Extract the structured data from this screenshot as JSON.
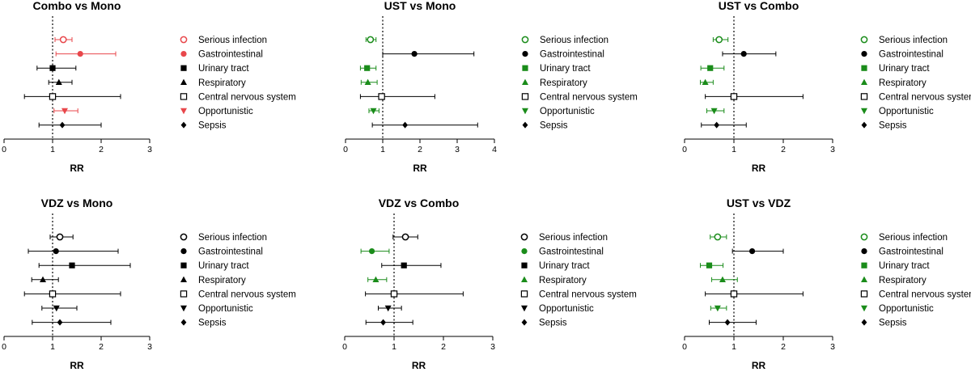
{
  "colors": {
    "highlight": "#e8474b",
    "green": "#1a8c1a",
    "black": "#000000"
  },
  "outcomes": [
    {
      "label": "Serious infection",
      "marker": "circle-open"
    },
    {
      "label": "Gastrointestinal",
      "marker": "circle-filled"
    },
    {
      "label": "Urinary tract",
      "marker": "square-filled"
    },
    {
      "label": "Respiratory",
      "marker": "triangle-up"
    },
    {
      "label": "Central nervous system",
      "marker": "square-open"
    },
    {
      "label": "Opportunistic",
      "marker": "triangle-down"
    },
    {
      "label": "Sepsis",
      "marker": "diamond"
    }
  ],
  "chart_data": [
    {
      "type": "forest",
      "title": "Combo vs Mono",
      "xlabel": "RR",
      "xlim": [
        0,
        3
      ],
      "ticks": [
        0,
        1,
        2,
        3
      ],
      "reference_line": 1,
      "accent": "highlight",
      "points": [
        {
          "outcome": "Serious infection",
          "rr": 1.22,
          "lo": 1.05,
          "hi": 1.4,
          "colored": true
        },
        {
          "outcome": "Gastrointestinal",
          "rr": 1.57,
          "lo": 1.07,
          "hi": 2.3,
          "colored": true
        },
        {
          "outcome": "Urinary tract",
          "rr": 1.0,
          "lo": 0.68,
          "hi": 1.48,
          "colored": false
        },
        {
          "outcome": "Respiratory",
          "rr": 1.13,
          "lo": 0.92,
          "hi": 1.4,
          "colored": false
        },
        {
          "outcome": "Central nervous system",
          "rr": 1.0,
          "lo": 0.42,
          "hi": 2.4,
          "colored": false
        },
        {
          "outcome": "Opportunistic",
          "rr": 1.25,
          "lo": 1.03,
          "hi": 1.52,
          "colored": true
        },
        {
          "outcome": "Sepsis",
          "rr": 1.2,
          "lo": 0.72,
          "hi": 2.0,
          "colored": false
        }
      ]
    },
    {
      "type": "forest",
      "title": "UST vs Mono",
      "xlabel": "RR",
      "xlim": [
        0,
        4
      ],
      "ticks": [
        0,
        1,
        2,
        3,
        4
      ],
      "reference_line": 1,
      "accent": "green",
      "points": [
        {
          "outcome": "Serious infection",
          "rr": 0.67,
          "lo": 0.55,
          "hi": 0.82,
          "colored": true
        },
        {
          "outcome": "Gastrointestinal",
          "rr": 1.85,
          "lo": 1.0,
          "hi": 3.45,
          "colored": false
        },
        {
          "outcome": "Urinary tract",
          "rr": 0.58,
          "lo": 0.4,
          "hi": 0.82,
          "colored": true
        },
        {
          "outcome": "Respiratory",
          "rr": 0.6,
          "lo": 0.42,
          "hi": 0.85,
          "colored": true
        },
        {
          "outcome": "Central nervous system",
          "rr": 0.97,
          "lo": 0.4,
          "hi": 2.4,
          "colored": false
        },
        {
          "outcome": "Opportunistic",
          "rr": 0.75,
          "lo": 0.63,
          "hi": 0.9,
          "colored": true
        },
        {
          "outcome": "Sepsis",
          "rr": 1.6,
          "lo": 0.72,
          "hi": 3.55,
          "colored": false
        }
      ]
    },
    {
      "type": "forest",
      "title": "UST vs Combo",
      "xlabel": "RR",
      "xlim": [
        0,
        3
      ],
      "ticks": [
        0,
        1,
        2,
        3
      ],
      "reference_line": 1,
      "accent": "green",
      "points": [
        {
          "outcome": "Serious infection",
          "rr": 0.7,
          "lo": 0.58,
          "hi": 0.88,
          "colored": true
        },
        {
          "outcome": "Gastrointestinal",
          "rr": 1.2,
          "lo": 0.77,
          "hi": 1.85,
          "colored": false
        },
        {
          "outcome": "Urinary tract",
          "rr": 0.52,
          "lo": 0.33,
          "hi": 0.8,
          "colored": true
        },
        {
          "outcome": "Respiratory",
          "rr": 0.42,
          "lo": 0.32,
          "hi": 0.58,
          "colored": true
        },
        {
          "outcome": "Central nervous system",
          "rr": 1.0,
          "lo": 0.42,
          "hi": 2.4,
          "colored": false
        },
        {
          "outcome": "Opportunistic",
          "rr": 0.6,
          "lo": 0.45,
          "hi": 0.8,
          "colored": true
        },
        {
          "outcome": "Sepsis",
          "rr": 0.65,
          "lo": 0.34,
          "hi": 1.25,
          "colored": false
        }
      ]
    },
    {
      "type": "forest",
      "title": "VDZ vs Mono",
      "xlabel": "RR",
      "xlim": [
        0,
        3
      ],
      "ticks": [
        0,
        1,
        2,
        3
      ],
      "reference_line": 1,
      "accent": "black",
      "points": [
        {
          "outcome": "Serious infection",
          "rr": 1.15,
          "lo": 0.95,
          "hi": 1.42,
          "colored": false
        },
        {
          "outcome": "Gastrointestinal",
          "rr": 1.07,
          "lo": 0.5,
          "hi": 2.35,
          "colored": false
        },
        {
          "outcome": "Urinary tract",
          "rr": 1.4,
          "lo": 0.72,
          "hi": 2.6,
          "colored": false
        },
        {
          "outcome": "Respiratory",
          "rr": 0.8,
          "lo": 0.57,
          "hi": 1.12,
          "colored": false
        },
        {
          "outcome": "Central nervous system",
          "rr": 1.0,
          "lo": 0.42,
          "hi": 2.4,
          "colored": false
        },
        {
          "outcome": "Opportunistic",
          "rr": 1.08,
          "lo": 0.78,
          "hi": 1.5,
          "colored": false
        },
        {
          "outcome": "Sepsis",
          "rr": 1.15,
          "lo": 0.58,
          "hi": 2.2,
          "colored": false
        }
      ]
    },
    {
      "type": "forest",
      "title": "VDZ vs Combo",
      "xlabel": "RR",
      "xlim": [
        0,
        3
      ],
      "ticks": [
        0,
        1,
        2,
        3
      ],
      "reference_line": 1,
      "accent": "green",
      "points": [
        {
          "outcome": "Serious infection",
          "rr": 1.23,
          "lo": 0.98,
          "hi": 1.48,
          "colored": false
        },
        {
          "outcome": "Gastrointestinal",
          "rr": 0.55,
          "lo": 0.33,
          "hi": 0.9,
          "colored": true
        },
        {
          "outcome": "Urinary tract",
          "rr": 1.2,
          "lo": 0.75,
          "hi": 1.95,
          "colored": false
        },
        {
          "outcome": "Respiratory",
          "rr": 0.63,
          "lo": 0.47,
          "hi": 0.85,
          "colored": true
        },
        {
          "outcome": "Central nervous system",
          "rr": 1.0,
          "lo": 0.42,
          "hi": 2.4,
          "colored": false
        },
        {
          "outcome": "Opportunistic",
          "rr": 0.88,
          "lo": 0.68,
          "hi": 1.15,
          "colored": false
        },
        {
          "outcome": "Sepsis",
          "rr": 0.78,
          "lo": 0.43,
          "hi": 1.38,
          "colored": false
        }
      ]
    },
    {
      "type": "forest",
      "title": "UST vs VDZ",
      "xlabel": "RR",
      "xlim": [
        0,
        3
      ],
      "ticks": [
        0,
        1,
        2,
        3
      ],
      "reference_line": 1,
      "accent": "green",
      "points": [
        {
          "outcome": "Serious infection",
          "rr": 0.67,
          "lo": 0.52,
          "hi": 0.85,
          "colored": true
        },
        {
          "outcome": "Gastrointestinal",
          "rr": 1.37,
          "lo": 0.97,
          "hi": 2.0,
          "colored": false
        },
        {
          "outcome": "Urinary tract",
          "rr": 0.5,
          "lo": 0.32,
          "hi": 0.78,
          "colored": true
        },
        {
          "outcome": "Respiratory",
          "rr": 0.77,
          "lo": 0.55,
          "hi": 1.07,
          "colored": true
        },
        {
          "outcome": "Central nervous system",
          "rr": 1.0,
          "lo": 0.42,
          "hi": 2.4,
          "colored": false
        },
        {
          "outcome": "Opportunistic",
          "rr": 0.67,
          "lo": 0.53,
          "hi": 0.85,
          "colored": true
        },
        {
          "outcome": "Sepsis",
          "rr": 0.87,
          "lo": 0.5,
          "hi": 1.45,
          "colored": false
        }
      ]
    }
  ]
}
